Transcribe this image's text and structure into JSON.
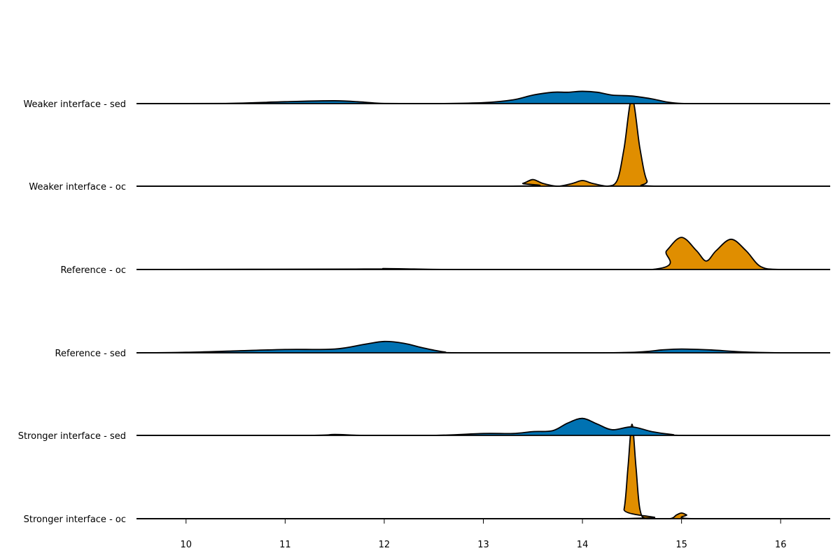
{
  "chart_data": {
    "type": "area",
    "title": "",
    "xlabel": "",
    "ylabel": "",
    "xlim": [
      9.5,
      16.5
    ],
    "x_ticks": [
      "10",
      "11",
      "12",
      "13",
      "14",
      "15",
      "16"
    ],
    "grid": false,
    "legend": "none",
    "colors": {
      "sed": "#0072b2",
      "oc": "#e08e00",
      "outline": "#000000"
    },
    "series": [
      {
        "name": "Weaker interface - sed",
        "kind": "sed",
        "points": [
          [
            9.5,
            0
          ],
          [
            10.4,
            0.002
          ],
          [
            11,
            0.02
          ],
          [
            11.5,
            0.03
          ],
          [
            11.8,
            0.015
          ],
          [
            12,
            0.002
          ],
          [
            12.5,
            0
          ],
          [
            13,
            0.01
          ],
          [
            13.3,
            0.04
          ],
          [
            13.5,
            0.09
          ],
          [
            13.7,
            0.12
          ],
          [
            13.85,
            0.12
          ],
          [
            14,
            0.13
          ],
          [
            14.15,
            0.12
          ],
          [
            14.3,
            0.09
          ],
          [
            14.5,
            0.08
          ],
          [
            14.7,
            0.05
          ],
          [
            14.9,
            0.01
          ],
          [
            15.2,
            0
          ],
          [
            16.5,
            0
          ]
        ]
      },
      {
        "name": "Weaker interface - oc",
        "kind": "oc",
        "points": [
          [
            9.5,
            0
          ],
          [
            13.25,
            0
          ],
          [
            13.4,
            0.03
          ],
          [
            13.5,
            0.07
          ],
          [
            13.6,
            0.03
          ],
          [
            13.75,
            0
          ],
          [
            13.9,
            0.03
          ],
          [
            14,
            0.06
          ],
          [
            14.1,
            0.03
          ],
          [
            14.25,
            0
          ],
          [
            14.35,
            0.06
          ],
          [
            14.42,
            0.4
          ],
          [
            14.5,
            0.93
          ],
          [
            14.58,
            0.4
          ],
          [
            14.65,
            0.06
          ],
          [
            14.75,
            0
          ],
          [
            16.5,
            0
          ]
        ]
      },
      {
        "name": "Reference - oc",
        "kind": "oc",
        "points": [
          [
            9.5,
            0
          ],
          [
            11.8,
            0.005
          ],
          [
            12,
            0.01
          ],
          [
            12.3,
            0.005
          ],
          [
            12.8,
            0
          ],
          [
            14.7,
            0
          ],
          [
            14.85,
            0.2
          ],
          [
            15,
            0.34
          ],
          [
            15.15,
            0.2
          ],
          [
            15.25,
            0.09
          ],
          [
            15.35,
            0.2
          ],
          [
            15.5,
            0.32
          ],
          [
            15.65,
            0.2
          ],
          [
            15.8,
            0.03
          ],
          [
            16,
            0
          ],
          [
            16.5,
            0
          ]
        ]
      },
      {
        "name": "Reference - sed",
        "kind": "sed",
        "points": [
          [
            9.5,
            0
          ],
          [
            10,
            0.005
          ],
          [
            10.5,
            0.02
          ],
          [
            11,
            0.035
          ],
          [
            11.5,
            0.04
          ],
          [
            11.8,
            0.09
          ],
          [
            12,
            0.12
          ],
          [
            12.2,
            0.1
          ],
          [
            12.4,
            0.05
          ],
          [
            12.6,
            0.01
          ],
          [
            12.8,
            0
          ],
          [
            14.2,
            0
          ],
          [
            14.6,
            0.01
          ],
          [
            14.8,
            0.03
          ],
          [
            15,
            0.04
          ],
          [
            15.3,
            0.03
          ],
          [
            15.6,
            0.01
          ],
          [
            16,
            0
          ],
          [
            16.5,
            0
          ]
        ]
      },
      {
        "name": "Stronger interface - sed",
        "kind": "sed",
        "points": [
          [
            9.5,
            0
          ],
          [
            11.2,
            0
          ],
          [
            11.5,
            0.01
          ],
          [
            11.8,
            0
          ],
          [
            12.5,
            0
          ],
          [
            13,
            0.02
          ],
          [
            13.3,
            0.02
          ],
          [
            13.5,
            0.04
          ],
          [
            13.7,
            0.05
          ],
          [
            13.85,
            0.13
          ],
          [
            14,
            0.18
          ],
          [
            14.15,
            0.12
          ],
          [
            14.3,
            0.06
          ],
          [
            14.5,
            0.09
          ],
          [
            14.7,
            0.04
          ],
          [
            14.9,
            0.01
          ],
          [
            15.1,
            0
          ],
          [
            16.5,
            0
          ]
        ]
      },
      {
        "name": "Stronger interface - oc",
        "kind": "oc",
        "points": [
          [
            9.5,
            0
          ],
          [
            14.35,
            0
          ],
          [
            14.42,
            0.1
          ],
          [
            14.46,
            0.55
          ],
          [
            14.5,
            1.0
          ],
          [
            14.54,
            0.55
          ],
          [
            14.58,
            0.1
          ],
          [
            14.65,
            0
          ],
          [
            14.88,
            0
          ],
          [
            14.95,
            0.04
          ],
          [
            15,
            0.06
          ],
          [
            15.05,
            0.04
          ],
          [
            15.12,
            0
          ],
          [
            16.5,
            0
          ]
        ]
      }
    ]
  }
}
